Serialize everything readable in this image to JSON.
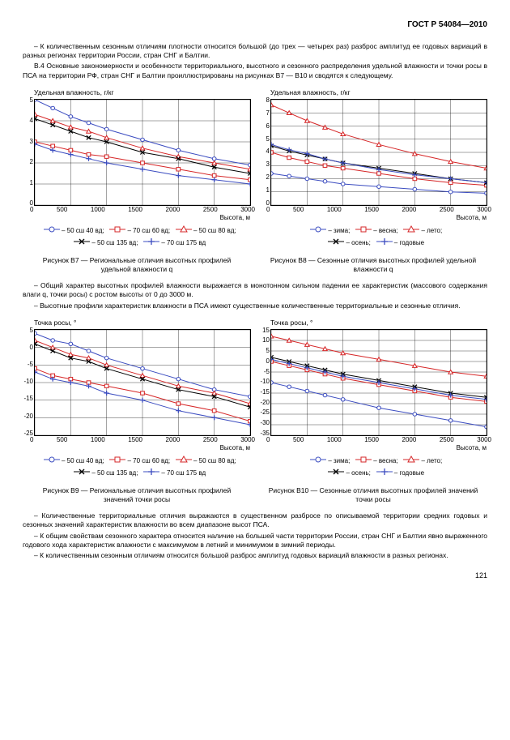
{
  "header": "ГОСТ Р 54084—2010",
  "p1": "– К количественным сезонным отличиям плотности относится большой (до трех — четырех раз) разброс амплитуд ее годовых вариаций в разных регионах территории России, стран СНГ и Балтии.",
  "p2": "В.4 Основные закономерности и особенности территориального, высотного и сезонного распределения удельной влажности и точки росы в ПСА на территории РФ, стран СНГ и Балтии проиллюстрированы на рисунках В7 — В10 и сводятся к следующему.",
  "p3": "– Общий характер высотных профилей влажности выражается в монотонном сильном падении ее характеристик (массового содержания влаги q, точки росы) с ростом высоты от 0 до 3000 м.",
  "p4": "– Высотные профили характеристик влажности в ПСА имеют существенные количественные территориальные и сезонные отличия.",
  "p5": "– Количественные территориальные отличия выражаются в существенном разбросе по описываемой территории средних годовых и сезонных значений характеристик влажности во всем диапазоне высот ПСА.",
  "p6": "– К общим свойствам сезонного характера относится наличие на большей части территории России, стран СНГ и Балтии явно выраженного годового хода характеристик влажности с максимумом в летний и минимумом в зимний периоды.",
  "p7": "– К количественным сезонным отличиям относится большой разброс амплитуд годовых вариаций влажности в разных регионах.",
  "pagenum": "121",
  "colors": {
    "blue": "#3b4cc0",
    "red": "#d62728",
    "black": "#000000"
  },
  "chartB7": {
    "ylabel": "Удельная влажность, г/кг",
    "xlabel": "Высота, м",
    "yticks": [
      "5",
      "4",
      "3",
      "2",
      "1",
      "0"
    ],
    "xticks": [
      "0",
      "500",
      "1000",
      "1500",
      "2000",
      "2500",
      "3000"
    ],
    "ylim": [
      0,
      5
    ],
    "xlim": [
      0,
      3000
    ],
    "caption": "Рисунок В7 — Региональные отличия высотных профилей удельной влажности q",
    "legend_rows": [
      [
        {
          "m": "circle",
          "c": "#3b4cc0",
          "t": "– 50 сш 40 вд;"
        },
        {
          "m": "square",
          "c": "#d62728",
          "t": "– 70 сш 60 вд;"
        },
        {
          "m": "triangle",
          "c": "#d62728",
          "t": "– 50 сш 80 вд;"
        }
      ],
      [
        {
          "m": "x",
          "c": "#000000",
          "t": "– 50 сш 135 вд;"
        },
        {
          "m": "plus",
          "c": "#3b4cc0",
          "t": "– 70 сш 175 вд"
        }
      ]
    ],
    "series": [
      {
        "c": "#3b4cc0",
        "m": "circle",
        "pts": [
          [
            0,
            5.0
          ],
          [
            250,
            4.6
          ],
          [
            500,
            4.2
          ],
          [
            750,
            3.9
          ],
          [
            1000,
            3.6
          ],
          [
            1500,
            3.1
          ],
          [
            2000,
            2.6
          ],
          [
            2500,
            2.2
          ],
          [
            3000,
            1.9
          ]
        ]
      },
      {
        "c": "#d62728",
        "m": "square",
        "pts": [
          [
            0,
            3.0
          ],
          [
            250,
            2.8
          ],
          [
            500,
            2.6
          ],
          [
            750,
            2.4
          ],
          [
            1000,
            2.3
          ],
          [
            1500,
            2.0
          ],
          [
            2000,
            1.7
          ],
          [
            2500,
            1.4
          ],
          [
            3000,
            1.2
          ]
        ]
      },
      {
        "c": "#d62728",
        "m": "triangle",
        "pts": [
          [
            0,
            4.3
          ],
          [
            250,
            4.0
          ],
          [
            500,
            3.7
          ],
          [
            750,
            3.5
          ],
          [
            1000,
            3.2
          ],
          [
            1500,
            2.7
          ],
          [
            2000,
            2.3
          ],
          [
            2500,
            2.0
          ],
          [
            3000,
            1.7
          ]
        ]
      },
      {
        "c": "#000000",
        "m": "x",
        "pts": [
          [
            0,
            4.1
          ],
          [
            250,
            3.8
          ],
          [
            500,
            3.5
          ],
          [
            750,
            3.2
          ],
          [
            1000,
            3.0
          ],
          [
            1500,
            2.5
          ],
          [
            2000,
            2.2
          ],
          [
            2500,
            1.8
          ],
          [
            3000,
            1.5
          ]
        ]
      },
      {
        "c": "#3b4cc0",
        "m": "plus",
        "pts": [
          [
            0,
            2.9
          ],
          [
            250,
            2.6
          ],
          [
            500,
            2.4
          ],
          [
            750,
            2.2
          ],
          [
            1000,
            2.0
          ],
          [
            1500,
            1.7
          ],
          [
            2000,
            1.4
          ],
          [
            2500,
            1.2
          ],
          [
            3000,
            1.0
          ]
        ]
      }
    ]
  },
  "chartB8": {
    "ylabel": "Удельная влажность, г/кг",
    "xlabel": "Высота, м",
    "yticks": [
      "8",
      "7",
      "6",
      "5",
      "4",
      "3",
      "2",
      "1",
      "0"
    ],
    "xticks": [
      "0",
      "500",
      "1000",
      "1500",
      "2000",
      "2500",
      "3000"
    ],
    "ylim": [
      0,
      8
    ],
    "xlim": [
      0,
      3000
    ],
    "caption": "Рисунок В8 — Сезонные отличия высотных профилей удельной влажности q",
    "legend_rows": [
      [
        {
          "m": "circle",
          "c": "#3b4cc0",
          "t": "– зима;"
        },
        {
          "m": "square",
          "c": "#d62728",
          "t": "– весна;"
        },
        {
          "m": "triangle",
          "c": "#d62728",
          "t": "– лето;"
        }
      ],
      [
        {
          "m": "x",
          "c": "#000000",
          "t": "– осень;"
        },
        {
          "m": "plus",
          "c": "#3b4cc0",
          "t": "– годовые"
        }
      ]
    ],
    "series": [
      {
        "c": "#3b4cc0",
        "m": "circle",
        "pts": [
          [
            0,
            2.4
          ],
          [
            250,
            2.2
          ],
          [
            500,
            2.0
          ],
          [
            750,
            1.8
          ],
          [
            1000,
            1.6
          ],
          [
            1500,
            1.4
          ],
          [
            2000,
            1.2
          ],
          [
            2500,
            1.0
          ],
          [
            3000,
            0.9
          ]
        ]
      },
      {
        "c": "#d62728",
        "m": "square",
        "pts": [
          [
            0,
            4.0
          ],
          [
            250,
            3.6
          ],
          [
            500,
            3.3
          ],
          [
            750,
            3.0
          ],
          [
            1000,
            2.8
          ],
          [
            1500,
            2.4
          ],
          [
            2000,
            2.0
          ],
          [
            2500,
            1.7
          ],
          [
            3000,
            1.5
          ]
        ]
      },
      {
        "c": "#d62728",
        "m": "triangle",
        "pts": [
          [
            0,
            7.6
          ],
          [
            250,
            7.0
          ],
          [
            500,
            6.4
          ],
          [
            750,
            5.9
          ],
          [
            1000,
            5.4
          ],
          [
            1500,
            4.6
          ],
          [
            2000,
            3.9
          ],
          [
            2500,
            3.3
          ],
          [
            3000,
            2.8
          ]
        ]
      },
      {
        "c": "#000000",
        "m": "x",
        "pts": [
          [
            0,
            4.5
          ],
          [
            250,
            4.1
          ],
          [
            500,
            3.8
          ],
          [
            750,
            3.5
          ],
          [
            1000,
            3.2
          ],
          [
            1500,
            2.8
          ],
          [
            2000,
            2.4
          ],
          [
            2500,
            2.0
          ],
          [
            3000,
            1.7
          ]
        ]
      },
      {
        "c": "#3b4cc0",
        "m": "plus",
        "pts": [
          [
            0,
            4.6
          ],
          [
            250,
            4.2
          ],
          [
            500,
            3.9
          ],
          [
            750,
            3.5
          ],
          [
            1000,
            3.2
          ],
          [
            1500,
            2.7
          ],
          [
            2000,
            2.3
          ],
          [
            2500,
            2.0
          ],
          [
            3000,
            1.7
          ]
        ]
      }
    ]
  },
  "chartB9": {
    "ylabel": "Точка росы, °",
    "xlabel": "Высота, м",
    "yticks": [
      "5",
      "0",
      "-5",
      "-10",
      "-15",
      "-20",
      "-25"
    ],
    "xticks": [
      "0",
      "500",
      "1000",
      "1500",
      "2000",
      "2500",
      "3000"
    ],
    "ylim": [
      -25,
      5
    ],
    "xlim": [
      0,
      3000
    ],
    "caption": "Рисунок В9 — Региональные отличия высотных профилей значений точки росы",
    "legend_rows": [
      [
        {
          "m": "circle",
          "c": "#3b4cc0",
          "t": "– 50 сш 40 вд;"
        },
        {
          "m": "square",
          "c": "#d62728",
          "t": "– 70 сш 60 вд;"
        },
        {
          "m": "triangle",
          "c": "#d62728",
          "t": "– 50 сш 80 вд;"
        }
      ],
      [
        {
          "m": "x",
          "c": "#000000",
          "t": "– 50 сш 135 вд;"
        },
        {
          "m": "plus",
          "c": "#3b4cc0",
          "t": "– 70 сш 175 вд"
        }
      ]
    ],
    "series": [
      {
        "c": "#3b4cc0",
        "m": "circle",
        "pts": [
          [
            0,
            4
          ],
          [
            250,
            2
          ],
          [
            500,
            1
          ],
          [
            750,
            -1
          ],
          [
            1000,
            -3
          ],
          [
            1500,
            -6
          ],
          [
            2000,
            -9
          ],
          [
            2500,
            -12
          ],
          [
            3000,
            -14
          ]
        ]
      },
      {
        "c": "#d62728",
        "m": "square",
        "pts": [
          [
            0,
            -6
          ],
          [
            250,
            -8
          ],
          [
            500,
            -9
          ],
          [
            750,
            -10
          ],
          [
            1000,
            -11
          ],
          [
            1500,
            -13
          ],
          [
            2000,
            -16
          ],
          [
            2500,
            -18
          ],
          [
            3000,
            -21
          ]
        ]
      },
      {
        "c": "#d62728",
        "m": "triangle",
        "pts": [
          [
            0,
            2
          ],
          [
            250,
            0
          ],
          [
            500,
            -2
          ],
          [
            750,
            -3
          ],
          [
            1000,
            -5
          ],
          [
            1500,
            -8
          ],
          [
            2000,
            -11
          ],
          [
            2500,
            -13
          ],
          [
            3000,
            -16
          ]
        ]
      },
      {
        "c": "#000000",
        "m": "x",
        "pts": [
          [
            0,
            1
          ],
          [
            250,
            -1
          ],
          [
            500,
            -3
          ],
          [
            750,
            -4
          ],
          [
            1000,
            -6
          ],
          [
            1500,
            -9
          ],
          [
            2000,
            -12
          ],
          [
            2500,
            -14
          ],
          [
            3000,
            -17
          ]
        ]
      },
      {
        "c": "#3b4cc0",
        "m": "plus",
        "pts": [
          [
            0,
            -7
          ],
          [
            250,
            -9
          ],
          [
            500,
            -10
          ],
          [
            750,
            -11
          ],
          [
            1000,
            -13
          ],
          [
            1500,
            -15
          ],
          [
            2000,
            -18
          ],
          [
            2500,
            -20
          ],
          [
            3000,
            -22
          ]
        ]
      }
    ]
  },
  "chartB10": {
    "ylabel": "Точка росы, °",
    "xlabel": "Высота, м",
    "yticks": [
      "15",
      "10",
      "5",
      "0",
      "-5",
      "-10",
      "-15",
      "-20",
      "-25",
      "-30",
      "-35"
    ],
    "xticks": [
      "0",
      "500",
      "1000",
      "1500",
      "2000",
      "2500",
      "3000"
    ],
    "ylim": [
      -35,
      15
    ],
    "xlim": [
      0,
      3000
    ],
    "caption": "Рисунок В10 — Сезонные отличия высотных профилей значений точки росы",
    "legend_rows": [
      [
        {
          "m": "circle",
          "c": "#3b4cc0",
          "t": "– зима;"
        },
        {
          "m": "square",
          "c": "#d62728",
          "t": "– весна;"
        },
        {
          "m": "triangle",
          "c": "#d62728",
          "t": "– лето;"
        }
      ],
      [
        {
          "m": "x",
          "c": "#000000",
          "t": "– осень;"
        },
        {
          "m": "plus",
          "c": "#3b4cc0",
          "t": "– годовые"
        }
      ]
    ],
    "series": [
      {
        "c": "#3b4cc0",
        "m": "circle",
        "pts": [
          [
            0,
            -10
          ],
          [
            250,
            -12
          ],
          [
            500,
            -14
          ],
          [
            750,
            -16
          ],
          [
            1000,
            -18
          ],
          [
            1500,
            -22
          ],
          [
            2000,
            -25
          ],
          [
            2500,
            -28
          ],
          [
            3000,
            -31
          ]
        ]
      },
      {
        "c": "#d62728",
        "m": "square",
        "pts": [
          [
            0,
            0
          ],
          [
            250,
            -2
          ],
          [
            500,
            -4
          ],
          [
            750,
            -6
          ],
          [
            1000,
            -8
          ],
          [
            1500,
            -11
          ],
          [
            2000,
            -14
          ],
          [
            2500,
            -17
          ],
          [
            3000,
            -19
          ]
        ]
      },
      {
        "c": "#d62728",
        "m": "triangle",
        "pts": [
          [
            0,
            12
          ],
          [
            250,
            10
          ],
          [
            500,
            8
          ],
          [
            750,
            6
          ],
          [
            1000,
            4
          ],
          [
            1500,
            1
          ],
          [
            2000,
            -2
          ],
          [
            2500,
            -5
          ],
          [
            3000,
            -7
          ]
        ]
      },
      {
        "c": "#000000",
        "m": "x",
        "pts": [
          [
            0,
            2
          ],
          [
            250,
            0
          ],
          [
            500,
            -2
          ],
          [
            750,
            -4
          ],
          [
            1000,
            -6
          ],
          [
            1500,
            -9
          ],
          [
            2000,
            -12
          ],
          [
            2500,
            -15
          ],
          [
            3000,
            -17
          ]
        ]
      },
      {
        "c": "#3b4cc0",
        "m": "plus",
        "pts": [
          [
            0,
            1
          ],
          [
            250,
            -1
          ],
          [
            500,
            -3
          ],
          [
            750,
            -5
          ],
          [
            1000,
            -7
          ],
          [
            1500,
            -10
          ],
          [
            2000,
            -13
          ],
          [
            2500,
            -16
          ],
          [
            3000,
            -18
          ]
        ]
      }
    ]
  }
}
